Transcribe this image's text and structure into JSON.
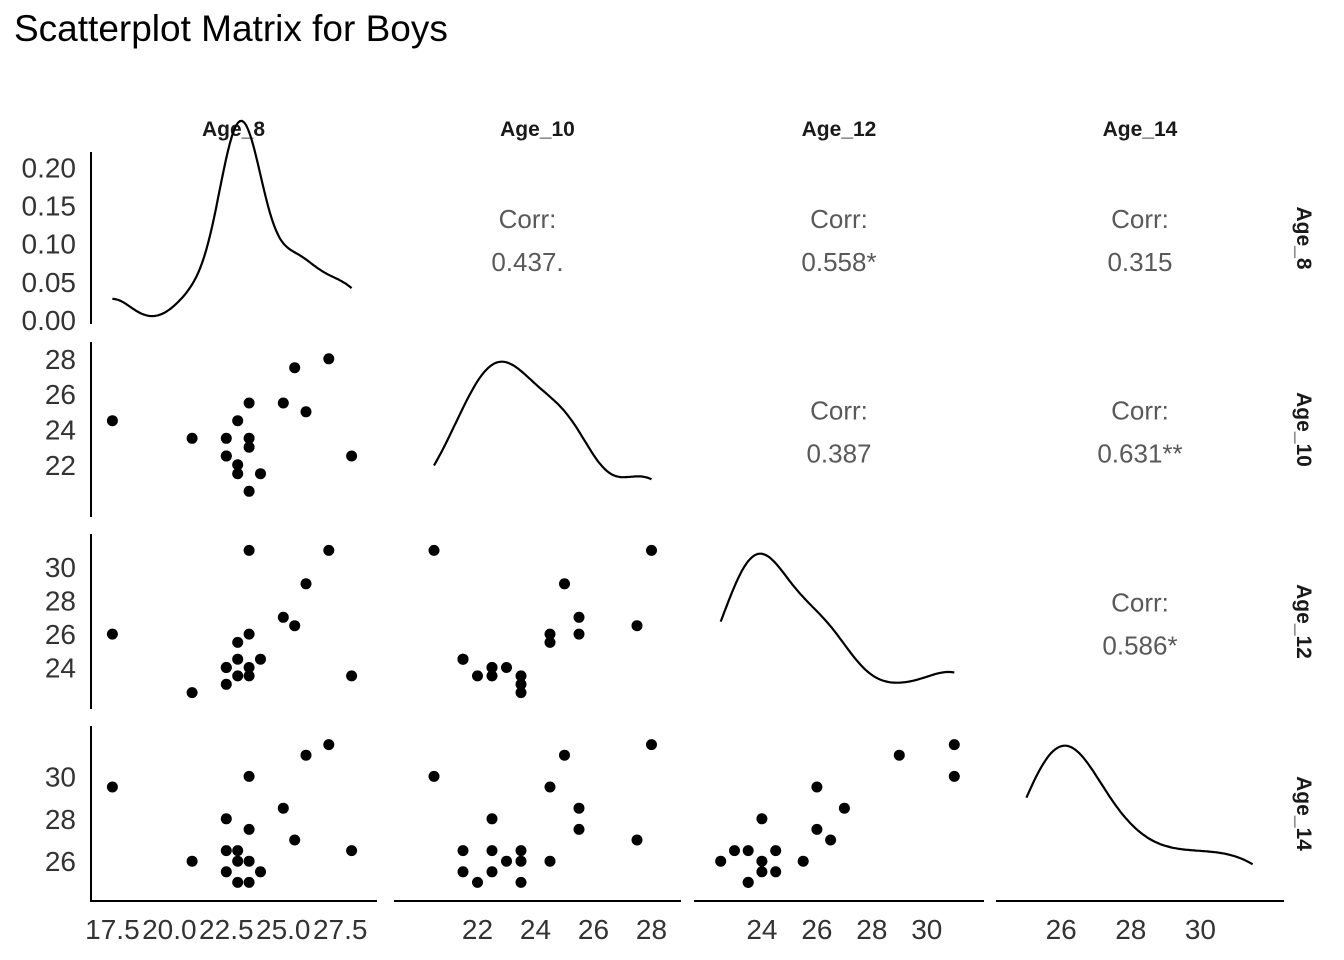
{
  "title": "Scatterplot Matrix for Boys",
  "chart_data": {
    "type": "scatter",
    "variables": [
      "Age_8",
      "Age_10",
      "Age_12",
      "Age_14"
    ],
    "data": {
      "Age_8": [
        17.5,
        21.0,
        22.5,
        22.5,
        22.5,
        23.0,
        23.0,
        23.0,
        23.5,
        23.5,
        23.5,
        23.5,
        24.0,
        25.0,
        25.5,
        26.0,
        27.0,
        28.0
      ],
      "Age_10": [
        24.5,
        23.5,
        23.5,
        22.5,
        22.5,
        22.0,
        21.5,
        24.5,
        25.5,
        23.0,
        20.5,
        23.5,
        21.5,
        25.5,
        27.5,
        25.0,
        28.0,
        22.5
      ],
      "Age_12": [
        26.0,
        22.5,
        23.0,
        24.0,
        24.0,
        23.5,
        24.5,
        25.5,
        26.0,
        24.0,
        31.0,
        23.5,
        24.5,
        27.0,
        26.5,
        29.0,
        31.0,
        23.5
      ],
      "Age_14": [
        29.5,
        26.0,
        26.5,
        28.0,
        25.5,
        25.0,
        26.5,
        26.0,
        27.5,
        26.0,
        30.0,
        25.0,
        25.5,
        28.5,
        27.0,
        31.0,
        31.5,
        26.5
      ]
    },
    "correlations": {
      "Age_8|Age_10": "0.437.",
      "Age_8|Age_12": "0.558*",
      "Age_8|Age_14": "0.315",
      "Age_10|Age_12": "0.387",
      "Age_10|Age_14": "0.631**",
      "Age_12|Age_14": "0.586*"
    },
    "corr_label": "Corr:",
    "ranges": {
      "Age_8": [
        17.0,
        28.5
      ],
      "Age_10": [
        19.5,
        28.5
      ],
      "Age_12": [
        22.0,
        31.5
      ],
      "Age_14": [
        24.5,
        32.0
      ]
    },
    "x_ticks": {
      "Age_8": [
        "17.5",
        "20.0",
        "22.5",
        "25.0",
        "27.5"
      ],
      "Age_10": [
        "22",
        "24",
        "26",
        "28"
      ],
      "Age_12": [
        "24",
        "26",
        "28",
        "30"
      ],
      "Age_14": [
        "26",
        "28",
        "30"
      ]
    },
    "y_ticks": {
      "density_row": [
        "0.00",
        "0.05",
        "0.10",
        "0.15",
        "0.20"
      ],
      "Age_10": [
        "22",
        "24",
        "26",
        "28"
      ],
      "Age_12": [
        "24",
        "26",
        "28",
        "30"
      ],
      "Age_14": [
        "26",
        "28",
        "30"
      ]
    },
    "density_range": [
      0,
      0.22
    ],
    "grid": false
  }
}
